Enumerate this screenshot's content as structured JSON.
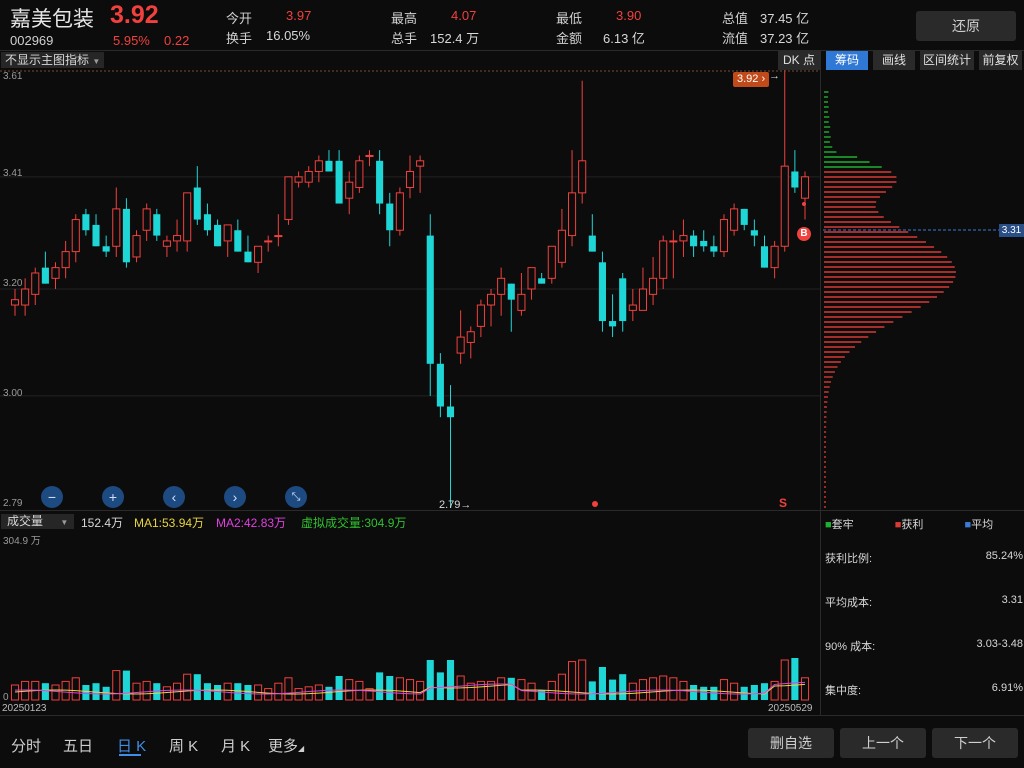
{
  "header": {
    "name": "嘉美包装",
    "price": "3.92",
    "code": "002969",
    "change_pct": "5.95%",
    "change_abs": "0.22",
    "quote": [
      {
        "label": "今开",
        "value": "3.97",
        "color": "red"
      },
      {
        "label": "最高",
        "value": "4.07",
        "color": "red"
      },
      {
        "label": "最低",
        "value": "3.90",
        "color": "red"
      },
      {
        "label": "总值",
        "value": "37.45 亿",
        "color": "white"
      },
      {
        "label": "换手",
        "value": "16.05%",
        "color": "white"
      },
      {
        "label": "总手",
        "value": "152.4 万",
        "color": "white"
      },
      {
        "label": "金额",
        "value": "6.13 亿",
        "color": "white"
      },
      {
        "label": "流值",
        "value": "37.23 亿",
        "color": "white"
      }
    ],
    "restore_label": "还原"
  },
  "toolbar": {
    "indicator_dropdown": "不显示主图指标",
    "buttons": [
      {
        "label": "DK 点",
        "active": false
      },
      {
        "label": "筹码",
        "active": true
      },
      {
        "label": "画线",
        "active": false
      },
      {
        "label": "区间统计",
        "active": false
      },
      {
        "label": "前复权",
        "active": false
      }
    ]
  },
  "chart": {
    "y_ticks": [
      "3.61",
      "3.41",
      "3.20",
      "3.00",
      "2.79"
    ],
    "price_tag": "3.92",
    "low_marker": "2.79",
    "cost_marker": "3.31",
    "buy_marker": "B",
    "sell_marker": "S",
    "colors": {
      "up": "#f0413e",
      "down": "#1fd6d6",
      "profit": "#d83a34",
      "trapped": "#20b030",
      "avg": "#3c7ad8"
    }
  },
  "chart_data": {
    "type": "candlestick",
    "ylim": [
      2.79,
      3.61
    ],
    "candles": [
      {
        "o": 3.17,
        "h": 3.2,
        "l": 3.15,
        "c": 3.18
      },
      {
        "o": 3.17,
        "h": 3.22,
        "l": 3.15,
        "c": 3.2
      },
      {
        "o": 3.19,
        "h": 3.24,
        "l": 3.17,
        "c": 3.23
      },
      {
        "o": 3.24,
        "h": 3.27,
        "l": 3.21,
        "c": 3.21
      },
      {
        "o": 3.22,
        "h": 3.25,
        "l": 3.2,
        "c": 3.24
      },
      {
        "o": 3.24,
        "h": 3.29,
        "l": 3.22,
        "c": 3.27
      },
      {
        "o": 3.27,
        "h": 3.34,
        "l": 3.25,
        "c": 3.33
      },
      {
        "o": 3.34,
        "h": 3.35,
        "l": 3.3,
        "c": 3.31
      },
      {
        "o": 3.32,
        "h": 3.34,
        "l": 3.28,
        "c": 3.28
      },
      {
        "o": 3.28,
        "h": 3.3,
        "l": 3.26,
        "c": 3.27
      },
      {
        "o": 3.28,
        "h": 3.39,
        "l": 3.26,
        "c": 3.35
      },
      {
        "o": 3.35,
        "h": 3.37,
        "l": 3.24,
        "c": 3.25
      },
      {
        "o": 3.26,
        "h": 3.31,
        "l": 3.25,
        "c": 3.3
      },
      {
        "o": 3.31,
        "h": 3.36,
        "l": 3.29,
        "c": 3.35
      },
      {
        "o": 3.34,
        "h": 3.35,
        "l": 3.29,
        "c": 3.3
      },
      {
        "o": 3.28,
        "h": 3.3,
        "l": 3.26,
        "c": 3.29
      },
      {
        "o": 3.29,
        "h": 3.33,
        "l": 3.27,
        "c": 3.3
      },
      {
        "o": 3.29,
        "h": 3.38,
        "l": 3.27,
        "c": 3.38
      },
      {
        "o": 3.39,
        "h": 3.43,
        "l": 3.32,
        "c": 3.33
      },
      {
        "o": 3.34,
        "h": 3.36,
        "l": 3.3,
        "c": 3.31
      },
      {
        "o": 3.32,
        "h": 3.33,
        "l": 3.28,
        "c": 3.28
      },
      {
        "o": 3.29,
        "h": 3.32,
        "l": 3.26,
        "c": 3.32
      },
      {
        "o": 3.31,
        "h": 3.33,
        "l": 3.27,
        "c": 3.27
      },
      {
        "o": 3.27,
        "h": 3.3,
        "l": 3.25,
        "c": 3.25
      },
      {
        "o": 3.25,
        "h": 3.28,
        "l": 3.23,
        "c": 3.28
      },
      {
        "o": 3.29,
        "h": 3.3,
        "l": 3.27,
        "c": 3.29
      },
      {
        "o": 3.3,
        "h": 3.34,
        "l": 3.28,
        "c": 3.3
      },
      {
        "o": 3.33,
        "h": 3.41,
        "l": 3.32,
        "c": 3.41
      },
      {
        "o": 3.4,
        "h": 3.42,
        "l": 3.39,
        "c": 3.41
      },
      {
        "o": 3.4,
        "h": 3.43,
        "l": 3.39,
        "c": 3.42
      },
      {
        "o": 3.42,
        "h": 3.45,
        "l": 3.4,
        "c": 3.44
      },
      {
        "o": 3.44,
        "h": 3.46,
        "l": 3.42,
        "c": 3.42
      },
      {
        "o": 3.44,
        "h": 3.46,
        "l": 3.36,
        "c": 3.36
      },
      {
        "o": 3.37,
        "h": 3.42,
        "l": 3.34,
        "c": 3.4
      },
      {
        "o": 3.39,
        "h": 3.45,
        "l": 3.38,
        "c": 3.44
      },
      {
        "o": 3.45,
        "h": 3.46,
        "l": 3.43,
        "c": 3.45
      },
      {
        "o": 3.44,
        "h": 3.46,
        "l": 3.34,
        "c": 3.36
      },
      {
        "o": 3.36,
        "h": 3.38,
        "l": 3.28,
        "c": 3.31
      },
      {
        "o": 3.31,
        "h": 3.39,
        "l": 3.3,
        "c": 3.38
      },
      {
        "o": 3.39,
        "h": 3.45,
        "l": 3.37,
        "c": 3.42
      },
      {
        "o": 3.43,
        "h": 3.45,
        "l": 3.38,
        "c": 3.44
      },
      {
        "o": 3.3,
        "h": 3.34,
        "l": 3.0,
        "c": 3.06
      },
      {
        "o": 3.06,
        "h": 3.08,
        "l": 2.96,
        "c": 2.98
      },
      {
        "o": 2.98,
        "h": 3.02,
        "l": 2.79,
        "c": 2.96
      },
      {
        "o": 3.08,
        "h": 3.16,
        "l": 3.06,
        "c": 3.11
      },
      {
        "o": 3.1,
        "h": 3.13,
        "l": 3.07,
        "c": 3.12
      },
      {
        "o": 3.13,
        "h": 3.18,
        "l": 3.11,
        "c": 3.17
      },
      {
        "o": 3.17,
        "h": 3.2,
        "l": 3.13,
        "c": 3.19
      },
      {
        "o": 3.19,
        "h": 3.24,
        "l": 3.15,
        "c": 3.22
      },
      {
        "o": 3.21,
        "h": 3.21,
        "l": 3.12,
        "c": 3.18
      },
      {
        "o": 3.16,
        "h": 3.23,
        "l": 3.15,
        "c": 3.19
      },
      {
        "o": 3.2,
        "h": 3.24,
        "l": 3.18,
        "c": 3.24
      },
      {
        "o": 3.22,
        "h": 3.23,
        "l": 3.21,
        "c": 3.21
      },
      {
        "o": 3.22,
        "h": 3.28,
        "l": 3.21,
        "c": 3.28
      },
      {
        "o": 3.25,
        "h": 3.35,
        "l": 3.24,
        "c": 3.31
      },
      {
        "o": 3.3,
        "h": 3.46,
        "l": 3.28,
        "c": 3.38
      },
      {
        "o": 3.38,
        "h": 3.59,
        "l": 3.36,
        "c": 3.44
      },
      {
        "o": 3.3,
        "h": 3.34,
        "l": 3.27,
        "c": 3.27
      },
      {
        "o": 3.25,
        "h": 3.27,
        "l": 3.12,
        "c": 3.14
      },
      {
        "o": 3.14,
        "h": 3.19,
        "l": 3.11,
        "c": 3.13
      },
      {
        "o": 3.22,
        "h": 3.23,
        "l": 3.12,
        "c": 3.14
      },
      {
        "o": 3.16,
        "h": 3.2,
        "l": 3.14,
        "c": 3.17
      },
      {
        "o": 3.16,
        "h": 3.24,
        "l": 3.16,
        "c": 3.2
      },
      {
        "o": 3.19,
        "h": 3.26,
        "l": 3.17,
        "c": 3.22
      },
      {
        "o": 3.22,
        "h": 3.3,
        "l": 3.2,
        "c": 3.29
      },
      {
        "o": 3.29,
        "h": 3.31,
        "l": 3.22,
        "c": 3.29
      },
      {
        "o": 3.29,
        "h": 3.33,
        "l": 3.26,
        "c": 3.3
      },
      {
        "o": 3.3,
        "h": 3.31,
        "l": 3.26,
        "c": 3.28
      },
      {
        "o": 3.29,
        "h": 3.31,
        "l": 3.27,
        "c": 3.28
      },
      {
        "o": 3.28,
        "h": 3.3,
        "l": 3.26,
        "c": 3.27
      },
      {
        "o": 3.27,
        "h": 3.34,
        "l": 3.26,
        "c": 3.33
      },
      {
        "o": 3.31,
        "h": 3.36,
        "l": 3.3,
        "c": 3.35
      },
      {
        "o": 3.35,
        "h": 3.35,
        "l": 3.31,
        "c": 3.32
      },
      {
        "o": 3.31,
        "h": 3.33,
        "l": 3.28,
        "c": 3.3
      },
      {
        "o": 3.28,
        "h": 3.3,
        "l": 3.24,
        "c": 3.24
      },
      {
        "o": 3.24,
        "h": 3.29,
        "l": 3.22,
        "c": 3.28
      },
      {
        "o": 3.28,
        "h": 3.61,
        "l": 3.27,
        "c": 3.43
      },
      {
        "o": 3.42,
        "h": 3.46,
        "l": 3.38,
        "c": 3.39
      },
      {
        "o": 3.37,
        "h": 3.42,
        "l": 3.33,
        "c": 3.41
      }
    ],
    "volume_dates": [
      "20250123",
      "20250529"
    ],
    "volume_stats": {
      "volume": "152.4万",
      "ma1": "MA1:53.94万",
      "ma2": "MA2:42.83万",
      "virtual": "虚拟成交量:304.9万",
      "max": "304.9 万",
      "zero": "0"
    }
  },
  "volume_bar": {
    "dropdown": "成交量"
  },
  "chip_panel": {
    "legend": [
      {
        "label": "套牢",
        "color": "#20b030"
      },
      {
        "label": "获利",
        "color": "#d83a34"
      },
      {
        "label": "平均",
        "color": "#3c7ad8"
      }
    ],
    "stats": [
      {
        "label": "获利比例:",
        "value": "85.24%"
      },
      {
        "label": "平均成本:",
        "value": "3.31"
      },
      {
        "label": "90% 成本:",
        "value": "3.03-3.48"
      },
      {
        "label": "集中度:",
        "value": "6.91%"
      }
    ]
  },
  "bottom": {
    "tabs": [
      {
        "label": "分时",
        "active": false
      },
      {
        "label": "五日",
        "active": false
      },
      {
        "label": "日 K",
        "active": true
      },
      {
        "label": "周 K",
        "active": false
      },
      {
        "label": "月 K",
        "active": false
      },
      {
        "label": "更多",
        "active": false
      }
    ],
    "buttons": [
      "删自选",
      "上一个",
      "下一个"
    ]
  },
  "nav_icons": [
    "zoom-out-icon",
    "zoom-in-icon",
    "scroll-left-icon",
    "scroll-right-icon",
    "fullscreen-icon"
  ]
}
